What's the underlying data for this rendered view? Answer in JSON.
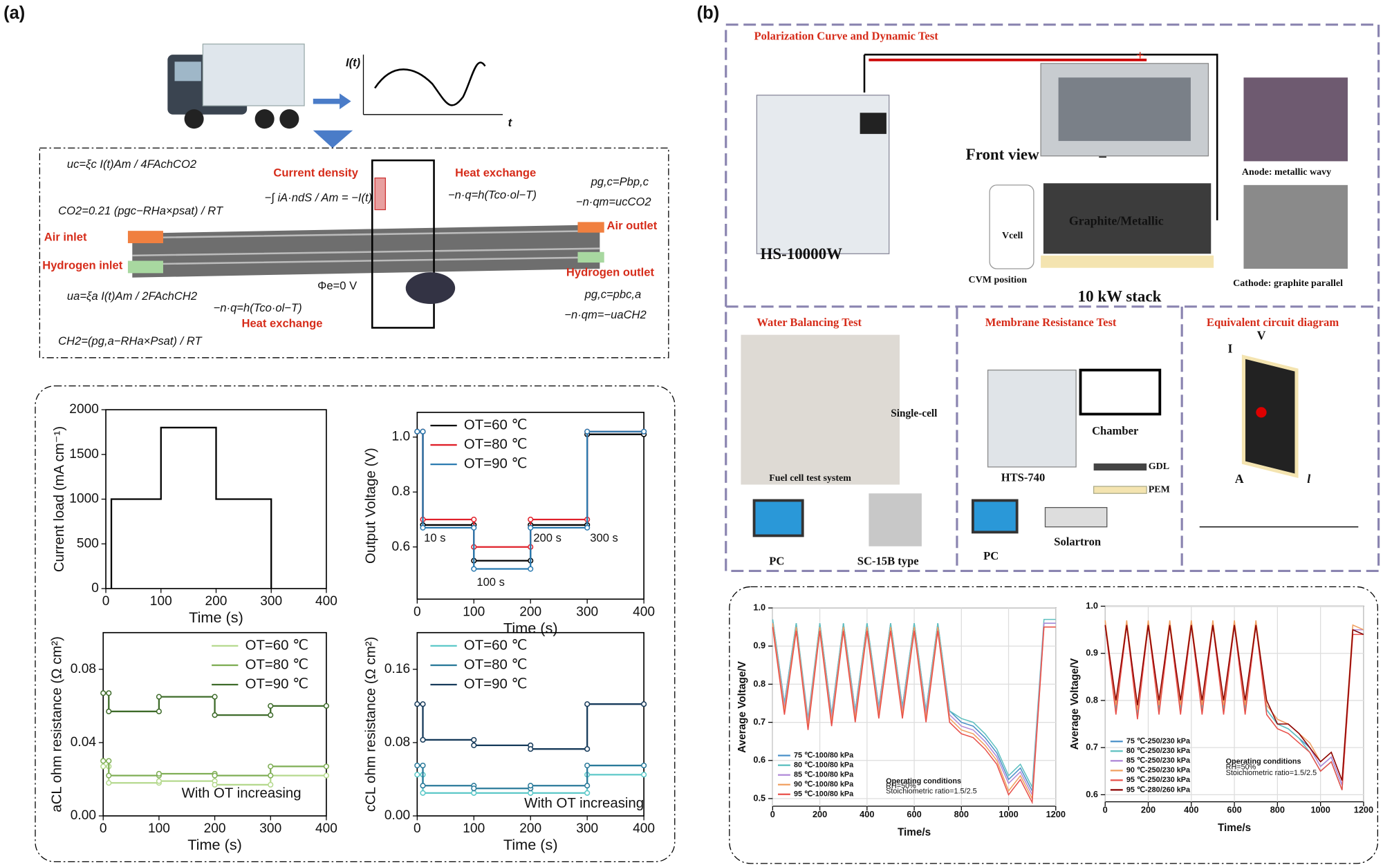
{
  "labels": [
    "(a)",
    "(b)",
    "I(t)",
    "t",
    "Current density",
    "Heat exchange",
    "Heat exchange",
    "Air inlet",
    "Hydrogen inlet",
    "Air outlet",
    "Hydrogen outlet",
    "Φe=0 V",
    "uc=ξc I(t)Am / 4FAchCO2",
    "CO2=0.21 (pgc−RHa×psat) / RT",
    "ua=ξa I(t)Am / 2FAchCH2",
    "CH2=(pg,a−RHa×Psat) / RT",
    "−∫ iA·ndS / Am = −I(t)",
    "−n·q=h(Tco·ol−T)",
    "−n·q=h(Tco·ol−T)",
    "pg,c=Pbp,c",
    "−n·qm=ucCO2",
    "pg,c=pbc,a",
    "−n·qm=−uaCH2",
    "Polarization Curve and Dynamic Test",
    "Front view",
    "HS-10000W",
    "Graphite/Metallic",
    "CVM position",
    "10 kW stack",
    "Anode: metallic wavy",
    "Cathode: graphite parallel",
    "Water Balancing Test",
    "Single-cell",
    "Fuel cell test system",
    "PC",
    "SC-15B type",
    "Membrane Resistance Test",
    "Chamber",
    "GDL",
    "PEM",
    "HTS-740",
    "PC",
    "Solartron",
    "Equivalent circuit diagram",
    "I",
    "V",
    "A",
    "l",
    "Vcell",
    "+",
    "−"
  ],
  "chart_data": [
    {
      "type": "line",
      "x_label": "Time (s)",
      "y_label": "Current load (mA cm⁻¹)",
      "color": "#000000",
      "x": [
        10,
        10,
        100,
        100,
        200,
        200,
        300,
        300
      ],
      "values": [
        0,
        1000,
        1000,
        1800,
        1800,
        1000,
        1000,
        0
      ],
      "xlim": [
        0,
        400
      ],
      "xticks": [
        0,
        100,
        200,
        300,
        400
      ],
      "ylim": [
        0,
        2000
      ],
      "yticks": [
        0,
        500,
        1000,
        1500,
        2000
      ]
    },
    {
      "type": "line",
      "x_label": "Time (s)",
      "y_label": "Output Voltage (V)",
      "markers": true,
      "legend": "upper left",
      "x": [
        0,
        10,
        10,
        100,
        100,
        200,
        200,
        300,
        300,
        400
      ],
      "series": [
        {
          "name": "OT=60 ℃",
          "color": "#000000",
          "values": [
            1.02,
            1.02,
            0.68,
            0.68,
            0.55,
            0.55,
            0.68,
            0.68,
            1.01,
            1.01
          ]
        },
        {
          "name": "OT=80 ℃",
          "color": "#e0202a",
          "values": [
            1.02,
            1.02,
            0.7,
            0.7,
            0.6,
            0.6,
            0.7,
            0.7,
            1.02,
            1.02
          ]
        },
        {
          "name": "OT=90 ℃",
          "color": "#2a7ab0",
          "values": [
            1.02,
            1.02,
            0.67,
            0.67,
            0.52,
            0.52,
            0.67,
            0.67,
            1.02,
            1.02
          ]
        }
      ],
      "annotations": [
        "10 s",
        "100 s",
        "200 s",
        "300 s"
      ],
      "xlim": [
        0,
        400
      ],
      "xticks": [
        0,
        100,
        200,
        300,
        400
      ],
      "ylim": [
        0.41,
        1.09
      ],
      "yticks": [
        0.6,
        0.8,
        {
          "value": 1,
          "label": "1.0"
        }
      ]
    },
    {
      "type": "line",
      "x_label": "Time (s)",
      "y_label": "aCL ohm resistance (Ω cm²)",
      "markers": true,
      "legend": "upper right",
      "x": [
        0,
        10,
        10,
        100,
        100,
        200,
        200,
        300,
        300,
        400
      ],
      "series": [
        {
          "name": "OT=60 ℃",
          "color": "#b5d98e",
          "values": [
            0.027,
            0.027,
            0.018,
            0.018,
            0.019,
            0.019,
            0.017,
            0.017,
            0.022,
            0.022
          ]
        },
        {
          "name": "OT=80 ℃",
          "color": "#7fae55",
          "values": [
            0.03,
            0.03,
            0.022,
            0.022,
            0.023,
            0.023,
            0.022,
            0.022,
            0.027,
            0.027
          ]
        },
        {
          "name": "OT=90 ℃",
          "color": "#3e6b2a",
          "values": [
            0.067,
            0.067,
            0.057,
            0.057,
            0.065,
            0.065,
            0.055,
            0.055,
            0.06,
            0.06
          ]
        }
      ],
      "annotations": [
        "With OT increasing"
      ],
      "xlim": [
        0,
        400
      ],
      "xticks": [
        0,
        100,
        200,
        300,
        400
      ],
      "ylim": [
        0,
        0.1
      ],
      "yticks": [
        {
          "value": 0,
          "label": "0.00"
        },
        {
          "value": 0.04,
          "label": "0.04"
        },
        {
          "value": 0.08,
          "label": "0.08"
        }
      ]
    },
    {
      "type": "line",
      "x_label": "Time (s)",
      "y_label": "cCL ohm resistance (Ω cm²)",
      "markers": true,
      "legend": "upper left",
      "x": [
        0,
        10,
        10,
        100,
        100,
        200,
        200,
        300,
        300,
        400
      ],
      "series": [
        {
          "name": "OT=60 ℃",
          "color": "#5cc8c8",
          "values": [
            0.045,
            0.045,
            0.025,
            0.025,
            0.025,
            0.025,
            0.025,
            0.025,
            0.045,
            0.045
          ]
        },
        {
          "name": "OT=80 ℃",
          "color": "#2a7a9a",
          "values": [
            0.055,
            0.055,
            0.033,
            0.033,
            0.03,
            0.03,
            0.033,
            0.033,
            0.055,
            0.055
          ]
        },
        {
          "name": "OT=90 ℃",
          "color": "#163a5a",
          "values": [
            0.122,
            0.122,
            0.083,
            0.083,
            0.077,
            0.077,
            0.073,
            0.073,
            0.122,
            0.122
          ]
        }
      ],
      "annotations": [
        "With OT increasing"
      ],
      "xlim": [
        0,
        400
      ],
      "xticks": [
        0,
        100,
        200,
        300,
        400
      ],
      "ylim": [
        0,
        0.2
      ],
      "yticks": [
        {
          "value": 0,
          "label": "0.00"
        },
        {
          "value": 0.08,
          "label": "0.08"
        },
        {
          "value": 0.16,
          "label": "0.16"
        }
      ]
    },
    {
      "type": "line",
      "x_label": "Time/s",
      "y_label": "Average Voltage/V",
      "legend": "lower left",
      "grid": true,
      "x": [
        0,
        50,
        100,
        150,
        200,
        250,
        300,
        350,
        400,
        450,
        500,
        550,
        600,
        650,
        700,
        750,
        800,
        850,
        900,
        950,
        1000,
        1050,
        1100,
        1150,
        1200
      ],
      "series": [
        {
          "name": "75 ℃-100/80 kPa",
          "color": "#4a90c8",
          "values": [
            0.97,
            0.75,
            0.96,
            0.7,
            0.96,
            0.72,
            0.96,
            0.73,
            0.96,
            0.74,
            0.96,
            0.74,
            0.96,
            0.73,
            0.96,
            0.73,
            0.7,
            0.69,
            0.66,
            0.62,
            0.55,
            0.58,
            0.52,
            0.96,
            0.96
          ]
        },
        {
          "name": "80 ℃-100/80 kPa",
          "color": "#5fc0c0",
          "values": [
            0.97,
            0.75,
            0.96,
            0.71,
            0.96,
            0.72,
            0.96,
            0.73,
            0.96,
            0.74,
            0.96,
            0.74,
            0.96,
            0.73,
            0.96,
            0.73,
            0.71,
            0.7,
            0.67,
            0.63,
            0.56,
            0.59,
            0.53,
            0.97,
            0.97
          ]
        },
        {
          "name": "85 ℃-100/80 kPa",
          "color": "#b08ad8",
          "values": [
            0.96,
            0.74,
            0.95,
            0.7,
            0.95,
            0.71,
            0.95,
            0.72,
            0.95,
            0.73,
            0.95,
            0.73,
            0.95,
            0.72,
            0.95,
            0.72,
            0.69,
            0.68,
            0.65,
            0.61,
            0.54,
            0.57,
            0.51,
            0.96,
            0.96
          ]
        },
        {
          "name": "90 ℃-100/80 kPa",
          "color": "#f0a060",
          "values": [
            0.96,
            0.73,
            0.95,
            0.69,
            0.95,
            0.7,
            0.95,
            0.71,
            0.95,
            0.72,
            0.95,
            0.72,
            0.95,
            0.71,
            0.95,
            0.71,
            0.68,
            0.67,
            0.64,
            0.6,
            0.52,
            0.56,
            0.5,
            0.95,
            0.95
          ]
        },
        {
          "name": "95 ℃-100/80 kPa",
          "color": "#e8504a",
          "values": [
            0.95,
            0.72,
            0.94,
            0.68,
            0.94,
            0.69,
            0.94,
            0.7,
            0.94,
            0.71,
            0.94,
            0.71,
            0.94,
            0.7,
            0.94,
            0.7,
            0.67,
            0.66,
            0.63,
            0.59,
            0.51,
            0.55,
            0.49,
            0.95,
            0.95
          ]
        }
      ],
      "annotations": [
        "Operating conditions",
        "RH=50%",
        "Stoichiometric ratio=1.5/2.5"
      ],
      "xlim": [
        0,
        1200
      ],
      "xticks": [
        0,
        200,
        400,
        600,
        800,
        1000,
        1200
      ],
      "ylim": [
        0.48,
        1.0
      ],
      "yticks": [
        0.5,
        0.6,
        0.7,
        0.8,
        0.9,
        {
          "value": 1,
          "label": "1.0"
        }
      ]
    },
    {
      "type": "line",
      "x_label": "Time/s",
      "y_label": "Average Voltage/V",
      "legend": "lower left",
      "grid": true,
      "x": [
        0,
        50,
        100,
        150,
        200,
        250,
        300,
        350,
        400,
        450,
        500,
        550,
        600,
        650,
        700,
        750,
        800,
        850,
        900,
        950,
        1000,
        1050,
        1100,
        1150,
        1200
      ],
      "series": [
        {
          "name": "75 ℃-250/230 kPa",
          "color": "#4a90c8",
          "values": [
            0.96,
            0.78,
            0.96,
            0.77,
            0.96,
            0.78,
            0.96,
            0.78,
            0.96,
            0.78,
            0.96,
            0.78,
            0.96,
            0.78,
            0.96,
            0.78,
            0.75,
            0.74,
            0.72,
            0.7,
            0.66,
            0.68,
            0.62,
            0.95,
            0.94
          ]
        },
        {
          "name": "80 ℃-250/230 kPa",
          "color": "#5fc0c0",
          "values": [
            0.96,
            0.78,
            0.96,
            0.77,
            0.96,
            0.78,
            0.96,
            0.78,
            0.96,
            0.78,
            0.96,
            0.78,
            0.96,
            0.78,
            0.96,
            0.78,
            0.75,
            0.74,
            0.72,
            0.69,
            0.65,
            0.67,
            0.61,
            0.95,
            0.94
          ]
        },
        {
          "name": "85 ℃-250/230 kPa",
          "color": "#b08ad8",
          "values": [
            0.96,
            0.79,
            0.96,
            0.78,
            0.96,
            0.79,
            0.96,
            0.79,
            0.96,
            0.79,
            0.96,
            0.79,
            0.96,
            0.79,
            0.96,
            0.79,
            0.76,
            0.75,
            0.73,
            0.7,
            0.66,
            0.68,
            0.62,
            0.95,
            0.95
          ]
        },
        {
          "name": "90 ℃-250/230 kPa",
          "color": "#f0a060",
          "values": [
            0.97,
            0.79,
            0.97,
            0.78,
            0.97,
            0.79,
            0.97,
            0.79,
            0.97,
            0.79,
            0.97,
            0.79,
            0.97,
            0.79,
            0.97,
            0.79,
            0.76,
            0.75,
            0.73,
            0.71,
            0.67,
            0.69,
            0.63,
            0.96,
            0.95
          ]
        },
        {
          "name": "95 ℃-250/230 kPa",
          "color": "#e8504a",
          "values": [
            0.96,
            0.77,
            0.96,
            0.76,
            0.96,
            0.77,
            0.96,
            0.77,
            0.96,
            0.77,
            0.96,
            0.77,
            0.96,
            0.77,
            0.96,
            0.77,
            0.74,
            0.73,
            0.71,
            0.69,
            0.65,
            0.67,
            0.61,
            0.94,
            0.94
          ]
        },
        {
          "name": "95 ℃-280/260 kPa",
          "color": "#8b0000",
          "values": [
            0.96,
            0.8,
            0.96,
            0.79,
            0.96,
            0.8,
            0.96,
            0.8,
            0.96,
            0.8,
            0.96,
            0.8,
            0.96,
            0.8,
            0.96,
            0.8,
            0.75,
            0.75,
            0.73,
            0.7,
            0.67,
            0.69,
            0.63,
            0.95,
            0.94
          ]
        }
      ],
      "annotations": [
        "Operating conditions",
        "RH=50%",
        "Stoichiometric ratio=1.5/2.5"
      ],
      "xlim": [
        0,
        1200
      ],
      "xticks": [
        0,
        200,
        400,
        600,
        800,
        1000,
        1200
      ],
      "ylim": [
        0.585,
        1.0
      ],
      "yticks": [
        0.6,
        0.7,
        0.8,
        0.9,
        {
          "value": 1,
          "label": "1.0"
        }
      ]
    }
  ]
}
